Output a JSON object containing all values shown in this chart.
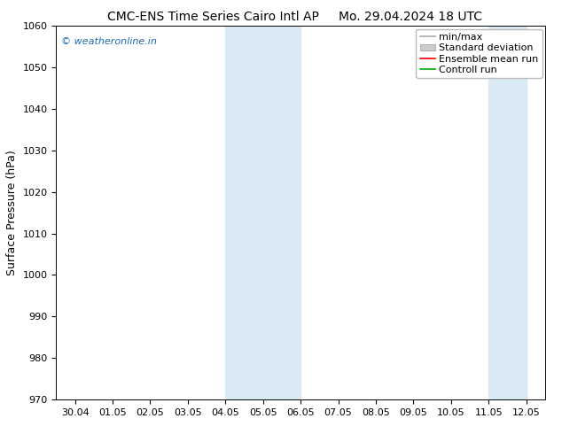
{
  "title_left": "CMC-ENS Time Series Cairo Intl AP",
  "title_right": "Mo. 29.04.2024 18 UTC",
  "ylabel": "Surface Pressure (hPa)",
  "ylim": [
    970,
    1060
  ],
  "yticks": [
    970,
    980,
    990,
    1000,
    1010,
    1020,
    1030,
    1040,
    1050,
    1060
  ],
  "x_labels": [
    "30.04",
    "01.05",
    "02.05",
    "03.05",
    "04.05",
    "05.05",
    "06.05",
    "07.05",
    "08.05",
    "09.05",
    "10.05",
    "11.05",
    "12.05"
  ],
  "x_positions": [
    0,
    1,
    2,
    3,
    4,
    5,
    6,
    7,
    8,
    9,
    10,
    11,
    12
  ],
  "shaded_bands": [
    {
      "xmin": 4.0,
      "xmax": 5.0,
      "color": "#daeaf5"
    },
    {
      "xmin": 5.0,
      "xmax": 6.0,
      "color": "#daeaf5"
    },
    {
      "xmin": 11.0,
      "xmax": 12.0,
      "color": "#daeaf5"
    }
  ],
  "xlim": [
    -0.5,
    12.5
  ],
  "watermark": "© weatheronline.in",
  "watermark_color": "#1a6ab5",
  "legend_labels": [
    "min/max",
    "Standard deviation",
    "Ensemble mean run",
    "Controll run"
  ],
  "legend_colors": [
    "#aaaaaa",
    "#cccccc",
    "#ff0000",
    "#00aa00"
  ],
  "background_color": "#ffffff",
  "title_fontsize": 10,
  "axis_label_fontsize": 9,
  "tick_fontsize": 8,
  "legend_fontsize": 8
}
